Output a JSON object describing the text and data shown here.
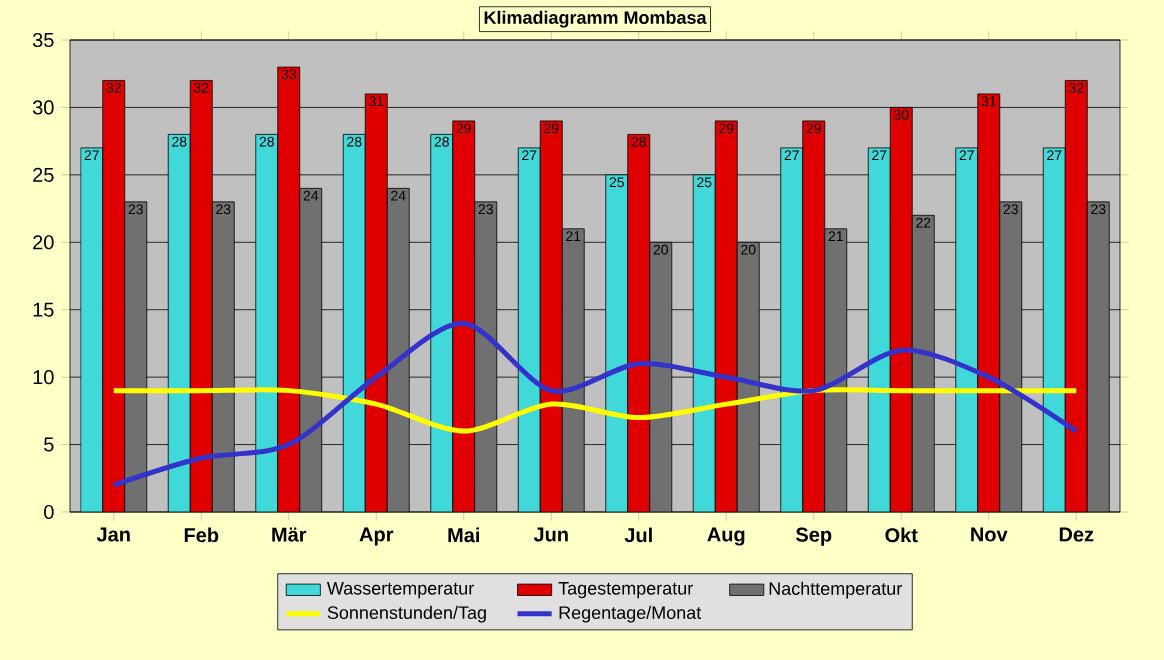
{
  "chart_data": {
    "type": "bar",
    "title": "Klimadiagramm Mombasa",
    "categories": [
      "Jan",
      "Feb",
      "Mär",
      "Apr",
      "Mai",
      "Jun",
      "Jul",
      "Aug",
      "Sep",
      "Okt",
      "Nov",
      "Dez"
    ],
    "series": [
      {
        "name": "Wassertemperatur",
        "color": "#40d8d8",
        "values": [
          27,
          28,
          28,
          28,
          28,
          27,
          25,
          25,
          27,
          27,
          27,
          27
        ],
        "value_labels": [
          "27",
          "28",
          "28",
          "28",
          "28",
          "27",
          "25",
          "25",
          "27",
          "27",
          "27",
          "27"
        ]
      },
      {
        "name": "Tagestemperatur",
        "color": "#e00000",
        "values": [
          32,
          32,
          33,
          31,
          29,
          29,
          28,
          29,
          29,
          30,
          31,
          32
        ],
        "value_labels": [
          "32",
          "32",
          "33",
          "31",
          "29",
          "29",
          "28",
          "29",
          "29",
          "30",
          "31",
          "32"
        ]
      },
      {
        "name": "Nachttemperatur",
        "color": "#707070",
        "values": [
          23,
          23,
          24,
          24,
          23,
          21,
          20,
          20,
          21,
          22,
          23,
          23
        ],
        "value_labels": [
          "23",
          "23",
          "24",
          "24",
          "23",
          "21",
          "20",
          "20",
          "21",
          "22",
          "23",
          "23"
        ]
      },
      {
        "name": "Sonnenstunden/Tag",
        "type": "line",
        "color": "#ffff00",
        "values": [
          9,
          9,
          9,
          8,
          6,
          8,
          7,
          8,
          9,
          9,
          9,
          9
        ]
      },
      {
        "name": "Regentage/Monat",
        "type": "line",
        "color": "#3333cc",
        "values": [
          2,
          4,
          5,
          10,
          14,
          9,
          11,
          10,
          9,
          12,
          10,
          6
        ]
      }
    ],
    "ylim": [
      0,
      35
    ],
    "yticks": [
      0,
      5,
      10,
      15,
      20,
      25,
      30,
      35
    ],
    "grid": "y",
    "legend": "bottom"
  }
}
